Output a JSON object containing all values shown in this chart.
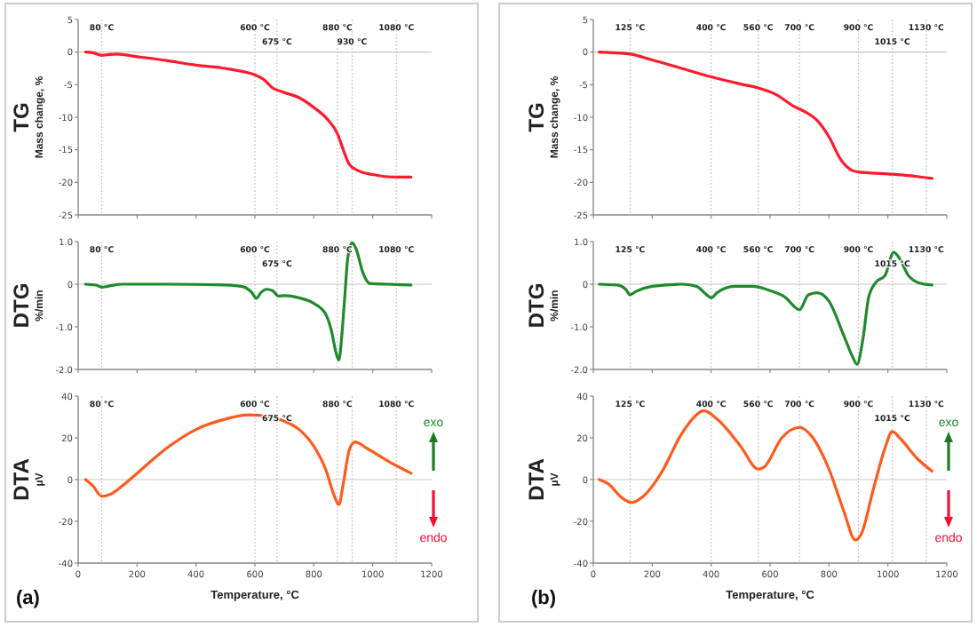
{
  "chart_data": [
    {
      "type": "line",
      "title": "TG",
      "ylabel": "Mass change, %",
      "xlim": [
        0,
        1200
      ],
      "xticks": [
        0,
        200,
        400,
        600,
        800,
        1000,
        1200
      ],
      "ylim": [
        -25,
        5
      ],
      "yticks": [
        5,
        0,
        -5,
        -10,
        -15,
        -20,
        -25
      ],
      "tick_labels": "y",
      "x": [
        25,
        50,
        80,
        100,
        130,
        200,
        300,
        400,
        500,
        560,
        600,
        630,
        660,
        700,
        750,
        800,
        850,
        880,
        900,
        920,
        950,
        1000,
        1080,
        1130
      ],
      "series": [
        {
          "color": "#ff1a2e",
          "values": [
            0,
            -0.1,
            -0.5,
            -0.4,
            -0.3,
            -0.7,
            -1.3,
            -2.0,
            -2.5,
            -3.0,
            -3.5,
            -4.2,
            -5.5,
            -6.2,
            -7.0,
            -8.5,
            -10.5,
            -12.5,
            -15,
            -17.2,
            -18.2,
            -18.8,
            -19.2,
            -19.2
          ]
        }
      ],
      "ref_lines": [
        {
          "axis": "y",
          "value": 0,
          "label": null
        },
        {
          "axis": "x",
          "value": 80,
          "label": "80 °C"
        },
        {
          "axis": "x",
          "value": 600,
          "label": "600 °C"
        },
        {
          "axis": "x",
          "value": 675,
          "label": "675 °C"
        },
        {
          "axis": "x",
          "value": 880,
          "label": "880 °C"
        },
        {
          "axis": "x",
          "value": 930,
          "label": "930 °C"
        },
        {
          "axis": "x",
          "value": 1080,
          "label": "1080 °C"
        }
      ]
    },
    {
      "type": "line",
      "title": "DTG",
      "ylabel": "%/min",
      "xlim": [
        0,
        1200
      ],
      "xticks": [
        0,
        200,
        400,
        600,
        800,
        1000,
        1200
      ],
      "ylim": [
        -2,
        1
      ],
      "yticks": [
        {
          "value": 1,
          "label": "1.0"
        },
        0,
        {
          "value": -1,
          "label": "-1.0"
        },
        {
          "value": -2,
          "label": "-2.0"
        }
      ],
      "tick_labels": "y",
      "x": [
        25,
        60,
        80,
        100,
        150,
        300,
        500,
        560,
        590,
        605,
        620,
        640,
        660,
        680,
        700,
        750,
        800,
        840,
        860,
        875,
        885,
        895,
        905,
        915,
        930,
        945,
        965,
        990,
        1050,
        1130
      ],
      "series": [
        {
          "color": "#1e8a2a",
          "values": [
            0,
            -0.02,
            -0.07,
            -0.05,
            0,
            0,
            -0.02,
            -0.06,
            -0.2,
            -0.33,
            -0.2,
            -0.12,
            -0.15,
            -0.28,
            -0.27,
            -0.32,
            -0.45,
            -0.7,
            -1.1,
            -1.6,
            -1.78,
            -1.2,
            -0.3,
            0.6,
            0.97,
            0.8,
            0.3,
            0.02,
            0,
            -0.02
          ]
        }
      ],
      "ref_lines": [
        {
          "axis": "y",
          "value": 0,
          "label": null
        },
        {
          "axis": "x",
          "value": 80,
          "label": "80 °C"
        },
        {
          "axis": "x",
          "value": 600,
          "label": "600 °C"
        },
        {
          "axis": "x",
          "value": 675,
          "label": "675 °C"
        },
        {
          "axis": "x",
          "value": 880,
          "label": "880 °C"
        },
        {
          "axis": "x",
          "value": 930,
          "label": null
        },
        {
          "axis": "x",
          "value": 1080,
          "label": "1080 °C"
        }
      ]
    },
    {
      "type": "line",
      "title": "DTA",
      "ylabel": "µV",
      "xlabel": "Temperature, °C",
      "xlim": [
        0,
        1200
      ],
      "xticks": [
        0,
        200,
        400,
        600,
        800,
        1000,
        1200
      ],
      "ylim": [
        -40,
        40
      ],
      "yticks": [
        40,
        20,
        0,
        -20,
        -40
      ],
      "x": [
        25,
        50,
        80,
        110,
        150,
        200,
        300,
        400,
        500,
        580,
        650,
        700,
        750,
        800,
        840,
        870,
        885,
        900,
        920,
        940,
        980,
        1050,
        1130
      ],
      "series": [
        {
          "color": "#ff5a1e",
          "values": [
            0,
            -3,
            -8,
            -7,
            -3,
            3,
            15,
            24,
            29,
            31,
            30,
            28,
            24,
            16,
            5,
            -8,
            -12,
            -2,
            14,
            18,
            15,
            9,
            3
          ]
        }
      ],
      "ref_lines": [
        {
          "axis": "y",
          "value": 0,
          "label": null
        },
        {
          "axis": "x",
          "value": 80,
          "label": "80 °C"
        },
        {
          "axis": "x",
          "value": 600,
          "label": "600 °C"
        },
        {
          "axis": "x",
          "value": 675,
          "label": "675 °C"
        },
        {
          "axis": "x",
          "value": 880,
          "label": "880 °C"
        },
        {
          "axis": "x",
          "value": 930,
          "label": null
        },
        {
          "axis": "x",
          "value": 1080,
          "label": "1080 °C"
        }
      ],
      "annotations": [
        "(a)",
        "exo",
        "endo"
      ]
    },
    {
      "type": "line",
      "title": "TG",
      "ylabel": "Mass change, %",
      "xlim": [
        0,
        1200
      ],
      "xticks": [
        0,
        200,
        400,
        600,
        800,
        1000,
        1200
      ],
      "ylim": [
        -25,
        5
      ],
      "yticks": [
        5,
        0,
        -5,
        -10,
        -15,
        -20,
        -25
      ],
      "tick_labels": "y",
      "x": [
        20,
        125,
        200,
        300,
        400,
        500,
        560,
        620,
        680,
        720,
        760,
        800,
        840,
        880,
        900,
        1000,
        1100,
        1150
      ],
      "series": [
        {
          "color": "#ff1a2e",
          "values": [
            0,
            -0.3,
            -1.2,
            -2.5,
            -3.8,
            -4.9,
            -5.5,
            -6.5,
            -8.3,
            -9.2,
            -10.5,
            -13,
            -16.5,
            -18.2,
            -18.4,
            -18.7,
            -19.1,
            -19.4
          ]
        }
      ],
      "ref_lines": [
        {
          "axis": "y",
          "value": 0,
          "label": null
        },
        {
          "axis": "x",
          "value": 125,
          "label": "125 °C"
        },
        {
          "axis": "x",
          "value": 400,
          "label": "400 °C"
        },
        {
          "axis": "x",
          "value": 560,
          "label": "560 °C"
        },
        {
          "axis": "x",
          "value": 700,
          "label": "700 °C"
        },
        {
          "axis": "x",
          "value": 900,
          "label": "900 °C"
        },
        {
          "axis": "x",
          "value": 1015,
          "label": "1015 °C"
        },
        {
          "axis": "x",
          "value": 1130,
          "label": "1130 °C"
        }
      ]
    },
    {
      "type": "line",
      "title": "DTG",
      "ylabel": "%/min",
      "xlim": [
        0,
        1200
      ],
      "xticks": [
        0,
        200,
        400,
        600,
        800,
        1000,
        1200
      ],
      "ylim": [
        -2,
        1
      ],
      "yticks": [
        {
          "value": 1,
          "label": "1.0"
        },
        0,
        {
          "value": -1,
          "label": "-1.0"
        },
        {
          "value": -2,
          "label": "-2.0"
        }
      ],
      "tick_labels": "y",
      "x": [
        20,
        80,
        110,
        125,
        145,
        200,
        300,
        350,
        385,
        400,
        420,
        480,
        540,
        600,
        650,
        700,
        730,
        760,
        800,
        850,
        880,
        895,
        915,
        935,
        960,
        990,
        1020,
        1040,
        1070,
        1110,
        1150
      ],
      "series": [
        {
          "color": "#1e8a2a",
          "values": [
            0,
            -0.02,
            -0.12,
            -0.25,
            -0.17,
            -0.05,
            0,
            -0.05,
            -0.25,
            -0.32,
            -0.2,
            -0.05,
            -0.05,
            -0.15,
            -0.3,
            -0.6,
            -0.25,
            -0.2,
            -0.4,
            -1.2,
            -1.7,
            -1.88,
            -1.3,
            -0.3,
            0.05,
            0.2,
            0.75,
            0.6,
            0.2,
            0.02,
            -0.02
          ]
        }
      ],
      "ref_lines": [
        {
          "axis": "y",
          "value": 0,
          "label": null
        },
        {
          "axis": "x",
          "value": 125,
          "label": "125 °C"
        },
        {
          "axis": "x",
          "value": 400,
          "label": "400 °C"
        },
        {
          "axis": "x",
          "value": 560,
          "label": "560 °C"
        },
        {
          "axis": "x",
          "value": 700,
          "label": "700 °C"
        },
        {
          "axis": "x",
          "value": 900,
          "label": "900 °C"
        },
        {
          "axis": "x",
          "value": 1015,
          "label": "1015 °C"
        },
        {
          "axis": "x",
          "value": 1130,
          "label": "1130 °C"
        }
      ]
    },
    {
      "type": "line",
      "title": "DTA",
      "ylabel": "µV",
      "xlabel": "Temperature, °C",
      "xlim": [
        0,
        1200
      ],
      "xticks": [
        0,
        200,
        400,
        600,
        800,
        1000,
        1200
      ],
      "ylim": [
        -40,
        40
      ],
      "yticks": [
        40,
        20,
        0,
        -20,
        -40
      ],
      "x": [
        20,
        50,
        100,
        130,
        170,
        230,
        300,
        350,
        375,
        420,
        500,
        560,
        580,
        640,
        700,
        740,
        800,
        850,
        890,
        910,
        950,
        990,
        1015,
        1040,
        1100,
        1150
      ],
      "series": [
        {
          "color": "#ff5a1e",
          "values": [
            0,
            -2,
            -9,
            -11,
            -8,
            3,
            22,
            31,
            33,
            29,
            16,
            5,
            6,
            20,
            25,
            21,
            5,
            -15,
            -29,
            -26,
            -5,
            15,
            23,
            20,
            10,
            4
          ]
        }
      ],
      "ref_lines": [
        {
          "axis": "y",
          "value": 0,
          "label": null
        },
        {
          "axis": "x",
          "value": 125,
          "label": "125 °C"
        },
        {
          "axis": "x",
          "value": 400,
          "label": "400 °C"
        },
        {
          "axis": "x",
          "value": 560,
          "label": "560 °C"
        },
        {
          "axis": "x",
          "value": 700,
          "label": "700 °C"
        },
        {
          "axis": "x",
          "value": 900,
          "label": "900 °C"
        },
        {
          "axis": "x",
          "value": 1015,
          "label": "1015 °C"
        },
        {
          "axis": "x",
          "value": 1130,
          "label": "1130 °C"
        }
      ],
      "annotations": [
        "(b)",
        "exo",
        "endo"
      ]
    }
  ]
}
